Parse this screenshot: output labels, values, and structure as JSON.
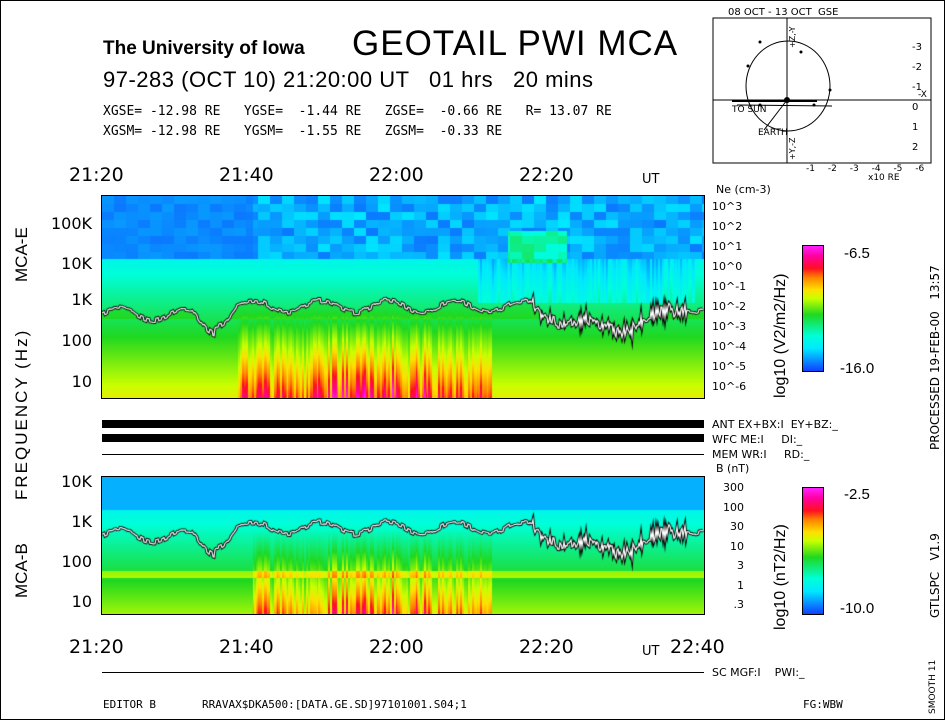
{
  "header": {
    "institution": "The University of Iowa",
    "title": "GEOTAIL PWI MCA",
    "subtitle": "97-283 (OCT 10) 21:20:00 UT   01 hrs   20 mins",
    "coords_gse": [
      "XGSE= -12.98 RE",
      "YGSE=  -1.44 RE",
      "ZGSE=  -0.66 RE",
      "R= 13.07 RE"
    ],
    "coords_gsm": [
      "XGSM= -12.98 RE",
      "YGSM=  -1.55 RE",
      "ZGSM=  -0.33 RE"
    ]
  },
  "orbit": {
    "title": "08 OCT - 13 OCT  GSE",
    "x_ticks": [
      "-1",
      "-2",
      "-3",
      "-4",
      "-5",
      "-6"
    ],
    "x_label": "x10 RE",
    "y_ticks": [
      "-3",
      "-2",
      "-1",
      "0",
      "1",
      "2"
    ],
    "labels": {
      "to_sun": "TO SUN",
      "earth": "EARTH",
      "minus_x": "-X",
      "top": "+Z,-Y",
      "bottom": "+Y,-Z"
    }
  },
  "chart_data": [
    {
      "type": "heatmap",
      "title": "MCA-E",
      "xlabel": "UT",
      "ylabel": "FREQUENCY (Hz)",
      "x_ticks": [
        "21:20",
        "21:40",
        "22:00",
        "22:20"
      ],
      "x_range": [
        "21:20",
        "22:40"
      ],
      "y_ticks": [
        "100K",
        "10K",
        "1K",
        "100",
        "10"
      ],
      "y_scale": "log",
      "right_axis_label": "Ne (cm-3)",
      "right_axis_ticks": [
        "10^3",
        "10^2",
        "10^1",
        "10^0",
        "10^-1",
        "10^-2",
        "10^-3",
        "10^-4",
        "10^-5",
        "10^-6"
      ],
      "colorbar": {
        "label": "log10 (V2/m2/Hz)",
        "max": "-6.5",
        "min": "-16.0",
        "range": [
          -16.0,
          -6.5
        ]
      }
    },
    {
      "type": "heatmap",
      "title": "MCA-B",
      "xlabel": "UT",
      "x_ticks": [
        "21:20",
        "21:40",
        "22:00",
        "22:20",
        "22:40"
      ],
      "x_range": [
        "21:20",
        "22:40"
      ],
      "y_ticks": [
        "10K",
        "1K",
        "100",
        "10"
      ],
      "y_scale": "log",
      "right_axis_label": "B (nT)",
      "right_axis_ticks": [
        "300",
        "100",
        "30",
        "10",
        "3",
        "1",
        ".3"
      ],
      "colorbar": {
        "label": "log10 (nT2/Hz)",
        "max": "-2.5",
        "min": "-10.0",
        "range": [
          -10.0,
          -2.5
        ]
      }
    }
  ],
  "axis": {
    "ut_top": "UT",
    "ut_bottom": "UT",
    "freq_label": "FREQUENCY (Hz)",
    "last_tick": "22:40"
  },
  "status": {
    "ant": "ANT EX+BX:I  EY+BZ:_",
    "wfc": "WFC ME:I     DI:_",
    "mem": "MEM WR:I     RD:_",
    "sc": "SC MGF:I    PWI:_"
  },
  "side": {
    "processed": "PROCESSED 19-FEB-00   13:57",
    "version": "GTLSPC   V1.9",
    "smooth": "SMOOTH 11"
  },
  "footer": {
    "editor": "EDITOR B",
    "file": "RRAVAX$DKA500:[DATA.GE.SD]97101001.S04;1",
    "fg": "FG:WBW"
  }
}
